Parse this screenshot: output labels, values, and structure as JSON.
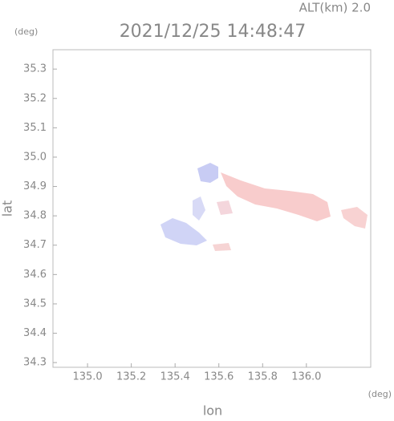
{
  "chart_data": {
    "type": "map",
    "title": "2021/12/25 14:48:47",
    "subtitle": "ALT(km) 2.0",
    "x_label": "lon",
    "y_label": "lat",
    "x_unit": "(deg)",
    "y_unit": "(deg)",
    "xlim": [
      134.842,
      136.294
    ],
    "ylim": [
      34.284,
      35.366
    ],
    "xticks": [
      {
        "value": 135,
        "label": "135.0"
      },
      135.2,
      135.4,
      135.6,
      135.8,
      {
        "value": 136,
        "label": "136.0"
      }
    ],
    "yticks": [
      34.3,
      34.4,
      34.5,
      34.6,
      34.7,
      34.8,
      34.9,
      {
        "value": 35,
        "label": "35.0"
      },
      35.1,
      35.2,
      35.3
    ]
  }
}
